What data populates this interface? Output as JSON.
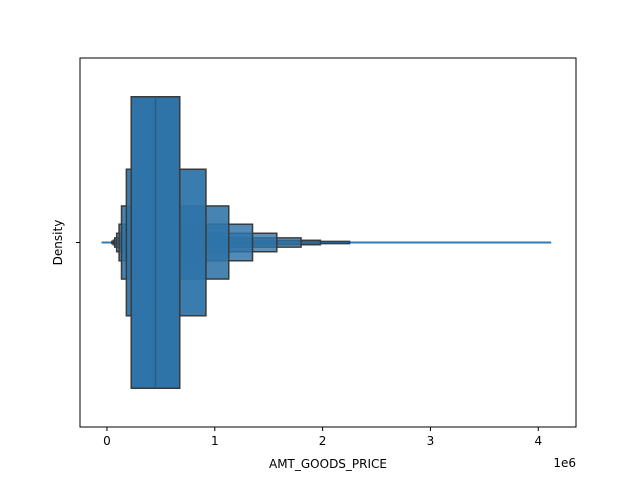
{
  "chart_data": {
    "type": "boxen",
    "xlabel": "AMT_GOODS_PRICE",
    "ylabel": "Density",
    "x_offset_label": "1e6",
    "xlim": [
      -250000,
      4350000
    ],
    "x_ticks": [
      0,
      1000000,
      2000000,
      3000000,
      4000000
    ],
    "x_tick_labels": [
      "0",
      "1",
      "2",
      "3",
      "4"
    ],
    "y_tick_labels": [
      ""
    ],
    "median": 450000,
    "letter_values": [
      {
        "low": 225000,
        "high": 675000,
        "height_frac": 0.79
      },
      {
        "low": 180000,
        "high": 918000,
        "height_frac": 0.397
      },
      {
        "low": 135000,
        "high": 1129500,
        "height_frac": 0.198
      },
      {
        "low": 112500,
        "high": 1350000,
        "height_frac": 0.099
      },
      {
        "low": 90000,
        "high": 1575000,
        "height_frac": 0.05
      },
      {
        "low": 72000,
        "high": 1800000,
        "height_frac": 0.025
      },
      {
        "low": 58500,
        "high": 1980000,
        "height_frac": 0.012
      },
      {
        "low": 45000,
        "high": 2250000,
        "height_frac": 0.006
      }
    ],
    "whisker": {
      "low": -50000,
      "high": 4120000
    },
    "colors": {
      "fill": "#2f74a8",
      "edge": "#3a3a3a",
      "median": "#2a5d85",
      "whisker": "#2f7bb6"
    }
  }
}
